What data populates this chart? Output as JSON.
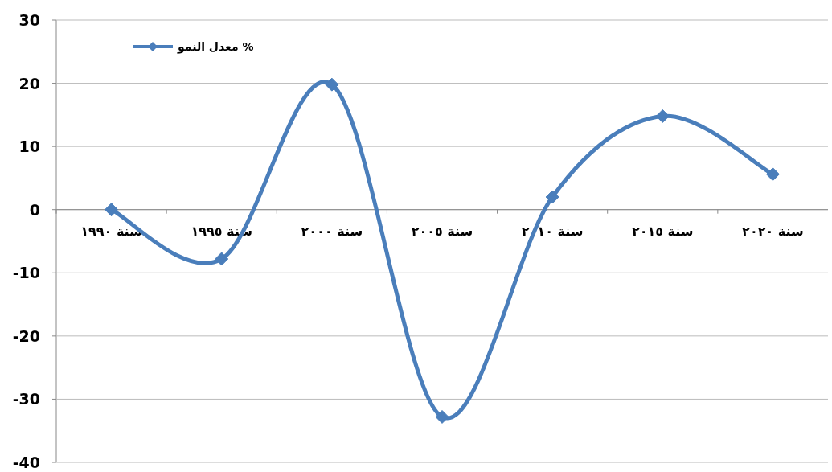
{
  "chart_data": {
    "type": "line",
    "categories": [
      "سنة ١٩٩٠",
      "سنة ١٩٩٥",
      "سنة ٢٠٠٠",
      "سنة ٢٠٠٥",
      "سنة ٢٠١٠",
      "سنة ٢٠١٥",
      "سنة ٢٠٢٠"
    ],
    "series": [
      {
        "name": "معدل النمو %",
        "color": "#4a7ebb",
        "values": [
          0,
          -7.8,
          19.8,
          -32.8,
          2,
          14.8,
          5.6
        ]
      }
    ],
    "ylim": [
      -40,
      30
    ],
    "yticks": [
      -40,
      -30,
      -20,
      -10,
      0,
      10,
      20,
      30
    ],
    "grid": "y",
    "legend": "top left",
    "marker": "diamond",
    "line_style": "solid"
  }
}
